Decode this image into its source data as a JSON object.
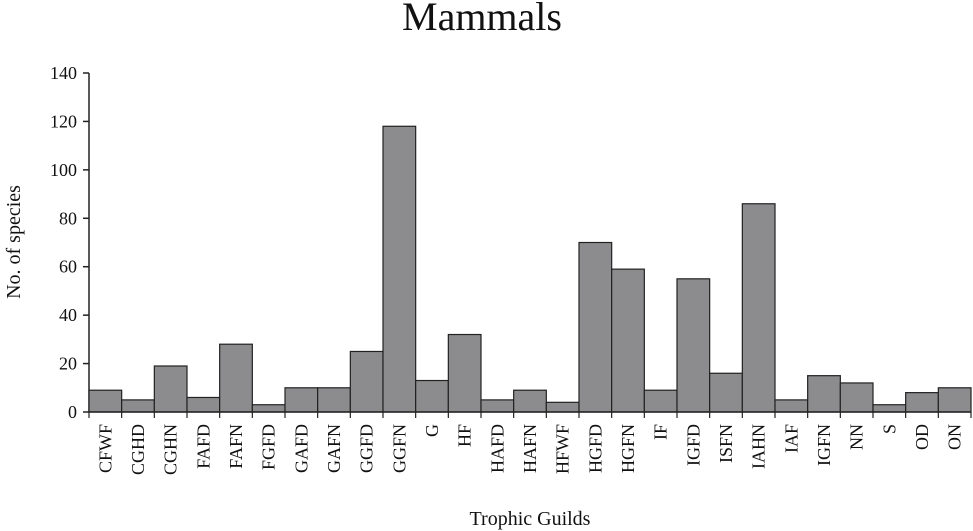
{
  "chart_data": {
    "type": "bar",
    "title": "Mammals",
    "xlabel": "Trophic Guilds",
    "ylabel": "No. of species",
    "ylim": [
      0,
      140
    ],
    "yticks": [
      0,
      20,
      40,
      60,
      80,
      100,
      120,
      140
    ],
    "grid": false,
    "legend": "none",
    "bar_color": "#8c8c8e",
    "edge_color": "#222222",
    "categories": [
      "CFWF",
      "CGHD",
      "CGHN",
      "FAFD",
      "FAFN",
      "FGFD",
      "GAFD",
      "GAFN",
      "GGFD",
      "GGFN",
      "G",
      "HF",
      "HAFD",
      "HAFN",
      "HFWF",
      "HGFD",
      "HGFN",
      "IF",
      "IGFD",
      "ISFN",
      "IAHN",
      "IAF",
      "IGFN",
      "NN",
      "S",
      "OD",
      "ON"
    ],
    "values": [
      9,
      5,
      19,
      6,
      28,
      3,
      10,
      10,
      25,
      118,
      13,
      32,
      5,
      9,
      4,
      70,
      59,
      9,
      55,
      16,
      86,
      5,
      15,
      12,
      3,
      8,
      10
    ]
  }
}
